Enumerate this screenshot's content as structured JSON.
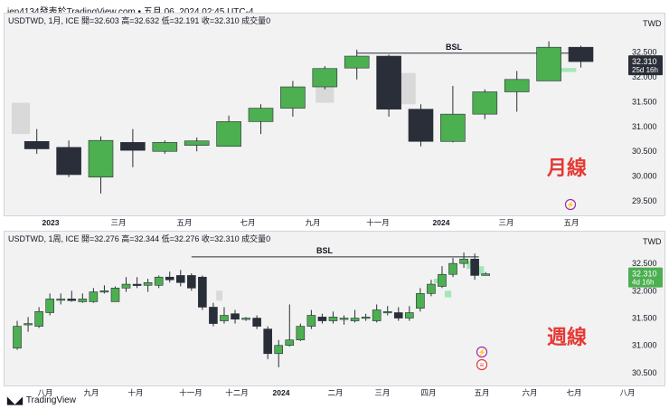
{
  "header": {
    "title": "jen4134發表於TradingView.com • 五月 06, 2024 02:45 UTC-4"
  },
  "footer": {
    "brand": "TradingView"
  },
  "colors": {
    "bull": "#4caf50",
    "bear": "#2a2e39",
    "bsl_line": "#2a2e39",
    "accent_red": "#e53935",
    "ghost": "#d9d9d9",
    "ghost_green": "#a5e6b8"
  },
  "chart_data": [
    {
      "type": "candlestick",
      "id": "monthly",
      "symbol": "USDTWD, 1月, ICE",
      "ohlc_label": "開=32.603  高=32.632  低=32.191  收=32.310  成交量0",
      "currency": "TWD",
      "last_price": "32.310",
      "countdown": "25d 16h",
      "watermark": "月線",
      "annotation": "BSL",
      "y_ticks": [
        "32.500",
        "32.000",
        "31.500",
        "31.000",
        "30.500",
        "30.000",
        "29.500"
      ],
      "ylim": [
        29.3,
        32.95
      ],
      "x_labels": [
        "2023",
        "三月",
        "五月",
        "七月",
        "九月",
        "十一月",
        "2024",
        "三月",
        "五月"
      ],
      "candles": [
        {
          "o": 30.7,
          "h": 30.95,
          "l": 30.45,
          "c": 30.55
        },
        {
          "o": 30.58,
          "h": 30.72,
          "l": 29.98,
          "c": 30.03
        },
        {
          "o": 29.98,
          "h": 30.8,
          "l": 29.65,
          "c": 30.72
        },
        {
          "o": 30.68,
          "h": 30.95,
          "l": 30.18,
          "c": 30.52
        },
        {
          "o": 30.5,
          "h": 30.72,
          "l": 30.45,
          "c": 30.68
        },
        {
          "o": 30.62,
          "h": 30.78,
          "l": 30.5,
          "c": 30.71
        },
        {
          "o": 30.6,
          "h": 31.22,
          "l": 30.6,
          "c": 31.1
        },
        {
          "o": 31.1,
          "h": 31.45,
          "l": 30.85,
          "c": 31.37
        },
        {
          "o": 31.37,
          "h": 31.92,
          "l": 31.2,
          "c": 31.8
        },
        {
          "o": 31.8,
          "h": 32.22,
          "l": 31.75,
          "c": 32.17
        },
        {
          "o": 32.18,
          "h": 32.55,
          "l": 31.95,
          "c": 32.42
        },
        {
          "o": 32.42,
          "h": 32.45,
          "l": 31.2,
          "c": 31.35
        },
        {
          "o": 31.35,
          "h": 31.45,
          "l": 30.6,
          "c": 30.7
        },
        {
          "o": 30.7,
          "h": 31.82,
          "l": 30.68,
          "c": 31.25
        },
        {
          "o": 31.25,
          "h": 31.75,
          "l": 31.15,
          "c": 31.7
        },
        {
          "o": 31.7,
          "h": 32.12,
          "l": 31.3,
          "c": 31.95
        },
        {
          "o": 31.92,
          "h": 32.72,
          "l": 31.92,
          "c": 32.6
        },
        {
          "o": 32.6,
          "h": 32.63,
          "l": 32.19,
          "c": 32.31
        }
      ],
      "ghosts": [
        {
          "i": -0.5,
          "top": 31.48,
          "bot": 30.85,
          "kind": "gray"
        },
        {
          "i": 9,
          "top": 31.8,
          "bot": 31.48,
          "kind": "gray"
        },
        {
          "i": 11.55,
          "top": 32.08,
          "bot": 31.45,
          "kind": "gray"
        },
        {
          "i": 16.55,
          "top": 32.18,
          "bot": 32.1,
          "kind": "green"
        }
      ],
      "bsl": {
        "from": 10,
        "to": 17,
        "level": 32.48
      }
    },
    {
      "type": "candlestick",
      "id": "weekly",
      "symbol": "USDTWD, 1周, ICE",
      "ohlc_label": "開=32.276  高=32.344  低=32.276  收=32.310  成交量0",
      "currency": "TWD",
      "last_price": "32.310",
      "countdown": "4d 16h",
      "watermark": "週線",
      "annotation": "BSL",
      "y_ticks": [
        "32.500",
        "32.000",
        "31.500",
        "31.000",
        "30.500"
      ],
      "ylim": [
        30.35,
        32.85
      ],
      "x_labels": [
        "八月",
        "九月",
        "十月",
        "十一月",
        "十二月",
        "2024",
        "二月",
        "三月",
        "四月",
        "五月",
        "六月",
        "七月",
        "八月"
      ],
      "candles": [
        {
          "o": 30.95,
          "h": 31.45,
          "l": 30.92,
          "c": 31.35
        },
        {
          "o": 31.4,
          "h": 31.52,
          "l": 31.25,
          "c": 31.4
        },
        {
          "o": 31.35,
          "h": 31.7,
          "l": 31.32,
          "c": 31.62
        },
        {
          "o": 31.6,
          "h": 31.95,
          "l": 31.55,
          "c": 31.85
        },
        {
          "o": 31.85,
          "h": 31.95,
          "l": 31.75,
          "c": 31.85
        },
        {
          "o": 31.85,
          "h": 32.0,
          "l": 31.8,
          "c": 31.82
        },
        {
          "o": 31.8,
          "h": 31.95,
          "l": 31.78,
          "c": 31.85
        },
        {
          "o": 31.8,
          "h": 32.05,
          "l": 31.78,
          "c": 31.98
        },
        {
          "o": 31.98,
          "h": 32.1,
          "l": 31.95,
          "c": 32.0
        },
        {
          "o": 31.8,
          "h": 32.08,
          "l": 31.8,
          "c": 32.05
        },
        {
          "o": 32.05,
          "h": 32.25,
          "l": 31.98,
          "c": 32.12
        },
        {
          "o": 32.12,
          "h": 32.25,
          "l": 32.05,
          "c": 32.1
        },
        {
          "o": 32.1,
          "h": 32.22,
          "l": 31.98,
          "c": 32.15
        },
        {
          "o": 32.1,
          "h": 32.28,
          "l": 32.05,
          "c": 32.25
        },
        {
          "o": 32.25,
          "h": 32.35,
          "l": 32.15,
          "c": 32.2
        },
        {
          "o": 32.28,
          "h": 32.38,
          "l": 32.08,
          "c": 32.15
        },
        {
          "o": 32.28,
          "h": 32.32,
          "l": 32.0,
          "c": 32.05
        },
        {
          "o": 32.25,
          "h": 32.28,
          "l": 31.65,
          "c": 31.7
        },
        {
          "o": 31.7,
          "h": 31.78,
          "l": 31.35,
          "c": 31.4
        },
        {
          "o": 31.45,
          "h": 31.7,
          "l": 31.4,
          "c": 31.55
        },
        {
          "o": 31.58,
          "h": 31.65,
          "l": 31.4,
          "c": 31.48
        },
        {
          "o": 31.48,
          "h": 31.52,
          "l": 31.45,
          "c": 31.5
        },
        {
          "o": 31.5,
          "h": 31.55,
          "l": 31.3,
          "c": 31.35
        },
        {
          "o": 31.3,
          "h": 31.35,
          "l": 30.75,
          "c": 30.85
        },
        {
          "o": 30.85,
          "h": 31.1,
          "l": 30.6,
          "c": 31.0
        },
        {
          "o": 31.0,
          "h": 31.75,
          "l": 30.98,
          "c": 31.1
        },
        {
          "o": 31.1,
          "h": 31.4,
          "l": 31.08,
          "c": 31.35
        },
        {
          "o": 31.35,
          "h": 31.65,
          "l": 31.3,
          "c": 31.55
        },
        {
          "o": 31.52,
          "h": 31.58,
          "l": 31.4,
          "c": 31.45
        },
        {
          "o": 31.45,
          "h": 31.62,
          "l": 31.4,
          "c": 31.52
        },
        {
          "o": 31.5,
          "h": 31.55,
          "l": 31.38,
          "c": 31.5
        },
        {
          "o": 31.45,
          "h": 31.65,
          "l": 31.42,
          "c": 31.5
        },
        {
          "o": 31.5,
          "h": 31.58,
          "l": 31.45,
          "c": 31.52
        },
        {
          "o": 31.45,
          "h": 31.75,
          "l": 31.42,
          "c": 31.65
        },
        {
          "o": 31.62,
          "h": 31.72,
          "l": 31.55,
          "c": 31.62
        },
        {
          "o": 31.6,
          "h": 31.7,
          "l": 31.45,
          "c": 31.5
        },
        {
          "o": 31.5,
          "h": 31.72,
          "l": 31.45,
          "c": 31.6
        },
        {
          "o": 31.68,
          "h": 32.05,
          "l": 31.62,
          "c": 31.95
        },
        {
          "o": 31.95,
          "h": 32.2,
          "l": 31.9,
          "c": 32.12
        },
        {
          "o": 32.08,
          "h": 32.45,
          "l": 32.05,
          "c": 32.3
        },
        {
          "o": 32.3,
          "h": 32.6,
          "l": 32.25,
          "c": 32.5
        },
        {
          "o": 32.5,
          "h": 32.7,
          "l": 32.42,
          "c": 32.58
        },
        {
          "o": 32.58,
          "h": 32.68,
          "l": 32.2,
          "c": 32.28
        },
        {
          "o": 32.28,
          "h": 32.34,
          "l": 32.28,
          "c": 32.31
        }
      ],
      "ghosts": [
        {
          "i": 18.55,
          "top": 32.0,
          "bot": 31.82,
          "kind": "gray"
        },
        {
          "i": 38.55,
          "top": 32.22,
          "bot": 32.14,
          "kind": "green"
        },
        {
          "i": 39.55,
          "top": 32.0,
          "bot": 31.88,
          "kind": "green"
        },
        {
          "i": 41.55,
          "top": 32.55,
          "bot": 32.4,
          "kind": "green"
        },
        {
          "i": 42.55,
          "top": 32.45,
          "bot": 32.3,
          "kind": "green"
        }
      ],
      "bsl": {
        "from": 16,
        "to": 42,
        "level": 32.62
      }
    }
  ]
}
